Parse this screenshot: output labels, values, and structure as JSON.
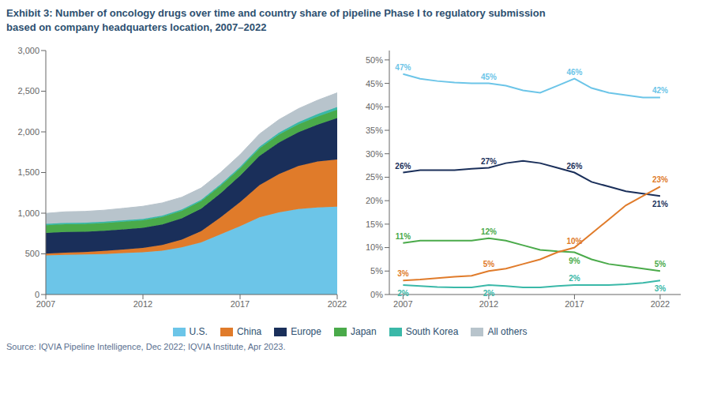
{
  "title": "Exhibit 3: Number of oncology drugs over time and country share of pipeline Phase I to regulatory submission",
  "subtitle": "based on company headquarters location, 2007–2022",
  "source": "Source: IQVIA Pipeline Intelligence, Dec 2022; IQVIA Institute, Apr 2023.",
  "chart_data": [
    {
      "type": "area",
      "stacked": true,
      "grid": false,
      "legend": "bottom",
      "x": [
        2007,
        2008,
        2009,
        2010,
        2011,
        2012,
        2013,
        2014,
        2015,
        2016,
        2017,
        2018,
        2019,
        2020,
        2021,
        2022
      ],
      "xlim": [
        2007,
        2022
      ],
      "xticks": [
        2007,
        2012,
        2017,
        2022
      ],
      "ylim": [
        0,
        3000
      ],
      "yticks": [
        0,
        500,
        {
          "value": 1000,
          "label": "1,000"
        },
        {
          "value": 1500,
          "label": "1,500"
        },
        {
          "value": 2000,
          "label": "2,000"
        },
        {
          "value": 2500,
          "label": "2,500"
        },
        {
          "value": 3000,
          "label": "3,000"
        }
      ],
      "series": [
        {
          "name": "U.S.",
          "color": "#6cc5e8",
          "values": [
            480,
            488,
            492,
            498,
            510,
            520,
            540,
            580,
            640,
            740,
            840,
            950,
            1010,
            1050,
            1070,
            1080
          ]
        },
        {
          "name": "China",
          "color": "#e07b2a",
          "values": [
            22,
            26,
            30,
            38,
            44,
            52,
            70,
            95,
            140,
            210,
            295,
            395,
            470,
            530,
            565,
            580
          ]
        },
        {
          "name": "Europe",
          "color": "#1a2f5a",
          "values": [
            255,
            255,
            250,
            248,
            248,
            248,
            252,
            262,
            275,
            295,
            325,
            360,
            390,
            415,
            455,
            510
          ]
        },
        {
          "name": "Japan",
          "color": "#4aaa4a",
          "values": [
            95,
            96,
            95,
            94,
            93,
            93,
            93,
            92,
            92,
            92,
            90,
            92,
            95,
            98,
            100,
            102
          ]
        },
        {
          "name": "South Korea",
          "color": "#3ab8a8",
          "values": [
            16,
            17,
            17,
            17,
            17,
            17,
            17,
            17,
            18,
            19,
            20,
            22,
            25,
            27,
            30,
            33
          ]
        },
        {
          "name": "All others",
          "color": "#b8c4cc",
          "values": [
            130,
            135,
            138,
            142,
            148,
            155,
            155,
            150,
            145,
            145,
            150,
            155,
            160,
            165,
            170,
            175
          ]
        }
      ]
    },
    {
      "type": "line",
      "grid": false,
      "data_labels": true,
      "x": [
        2007,
        2008,
        2009,
        2010,
        2011,
        2012,
        2013,
        2014,
        2015,
        2016,
        2017,
        2018,
        2019,
        2020,
        2021,
        2022
      ],
      "xlim": [
        2006.2,
        2023.2
      ],
      "xticks": [
        2007,
        2012,
        2017,
        2022
      ],
      "ylim": [
        0,
        52
      ],
      "yticks": [
        {
          "value": 0,
          "label": "0%"
        },
        {
          "value": 5,
          "label": "5%"
        },
        {
          "value": 10,
          "label": "10%"
        },
        {
          "value": 15,
          "label": "15%"
        },
        {
          "value": 20,
          "label": "20%"
        },
        {
          "value": 25,
          "label": "25%"
        },
        {
          "value": 30,
          "label": "30%"
        },
        {
          "value": 35,
          "label": "35%"
        },
        {
          "value": 40,
          "label": "40%"
        },
        {
          "value": 45,
          "label": "45%"
        },
        {
          "value": 50,
          "label": "50%"
        }
      ],
      "series": [
        {
          "name": "U.S.",
          "color": "#6cc5e8",
          "values": [
            47,
            46,
            45.5,
            45.2,
            45,
            45,
            44.5,
            43.5,
            43,
            44.5,
            46,
            44,
            43,
            42.5,
            42,
            42
          ],
          "value_labels": [
            "47%",
            null,
            null,
            null,
            null,
            "45%",
            null,
            null,
            null,
            null,
            "46%",
            null,
            null,
            null,
            null,
            "42%"
          ]
        },
        {
          "name": "Europe",
          "color": "#1a2f5a",
          "values": [
            26,
            26.5,
            26.5,
            26.5,
            26.8,
            27,
            28,
            28.5,
            28,
            27,
            26,
            24,
            23,
            22,
            21.5,
            21
          ],
          "value_labels": [
            "26%",
            null,
            null,
            null,
            null,
            "27%",
            null,
            null,
            null,
            null,
            "26%",
            null,
            null,
            null,
            null,
            "21%"
          ]
        },
        {
          "name": "Japan",
          "color": "#4aaa4a",
          "values": [
            11,
            11.5,
            11.5,
            11.5,
            11.5,
            12,
            11.5,
            10.5,
            9.5,
            9.2,
            9,
            7.5,
            6.5,
            6,
            5.5,
            5
          ],
          "value_labels": [
            "11%",
            null,
            null,
            null,
            null,
            "12%",
            null,
            null,
            null,
            null,
            "9%",
            null,
            null,
            null,
            null,
            "5%"
          ]
        },
        {
          "name": "China",
          "color": "#e07b2a",
          "values": [
            3,
            3.2,
            3.5,
            3.8,
            4,
            5,
            5.5,
            6.5,
            7.5,
            9,
            10,
            13,
            16,
            19,
            21,
            23
          ],
          "value_labels": [
            "3%",
            null,
            null,
            null,
            null,
            "5%",
            null,
            null,
            null,
            null,
            "10%",
            null,
            null,
            null,
            null,
            "23%"
          ]
        },
        {
          "name": "South Korea",
          "color": "#3ab8a8",
          "values": [
            2,
            1.8,
            1.6,
            1.5,
            1.5,
            2,
            1.8,
            1.5,
            1.5,
            1.8,
            2,
            2,
            2,
            2.2,
            2.5,
            3
          ],
          "value_labels": [
            "2%",
            null,
            null,
            null,
            null,
            "2%",
            null,
            null,
            null,
            null,
            "2%",
            null,
            null,
            null,
            null,
            "3%"
          ]
        }
      ]
    }
  ]
}
